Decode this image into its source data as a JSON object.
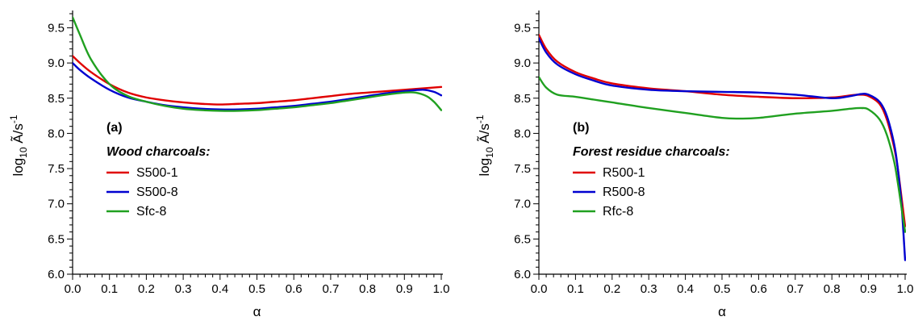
{
  "chart_data": [
    {
      "type": "line",
      "panel_label": "(a)",
      "legend_title": "Wood charcoals:",
      "xlabel": "α",
      "ylabel": "log10 Ã/s-1",
      "ylabel_parts": {
        "base": "log",
        "sub": "10",
        "mid": " Ã/s",
        "sup": "-1"
      },
      "xlim": [
        0.0,
        1.0
      ],
      "ylim": [
        6.0,
        9.7
      ],
      "xticks": [
        "0.0",
        "0.1",
        "0.2",
        "0.3",
        "0.4",
        "0.5",
        "0.6",
        "0.7",
        "0.8",
        "0.9",
        "1.0"
      ],
      "yticks": [
        "6.0",
        "6.5",
        "7.0",
        "7.5",
        "8.0",
        "8.5",
        "9.0",
        "9.5"
      ],
      "legend_position": "left",
      "series": [
        {
          "name": "S500-1",
          "color": "#e00000",
          "x": [
            0.0,
            0.02,
            0.05,
            0.1,
            0.15,
            0.2,
            0.25,
            0.3,
            0.35,
            0.4,
            0.45,
            0.5,
            0.55,
            0.6,
            0.65,
            0.7,
            0.75,
            0.8,
            0.85,
            0.9,
            0.95,
            1.0
          ],
          "y": [
            9.1,
            9.0,
            8.87,
            8.7,
            8.58,
            8.51,
            8.47,
            8.44,
            8.42,
            8.41,
            8.42,
            8.43,
            8.45,
            8.47,
            8.5,
            8.53,
            8.56,
            8.58,
            8.6,
            8.62,
            8.64,
            8.66
          ]
        },
        {
          "name": "S500-8",
          "color": "#0000d0",
          "x": [
            0.0,
            0.02,
            0.05,
            0.1,
            0.15,
            0.2,
            0.25,
            0.3,
            0.35,
            0.4,
            0.45,
            0.5,
            0.55,
            0.6,
            0.65,
            0.7,
            0.75,
            0.8,
            0.85,
            0.9,
            0.95,
            0.98,
            1.0
          ],
          "y": [
            9.0,
            8.9,
            8.78,
            8.62,
            8.51,
            8.45,
            8.4,
            8.37,
            8.35,
            8.34,
            8.34,
            8.35,
            8.37,
            8.39,
            8.42,
            8.45,
            8.49,
            8.53,
            8.57,
            8.6,
            8.62,
            8.59,
            8.54
          ]
        },
        {
          "name": "Sfc-8",
          "color": "#20a020",
          "x": [
            0.0,
            0.02,
            0.05,
            0.1,
            0.15,
            0.2,
            0.25,
            0.3,
            0.35,
            0.4,
            0.45,
            0.5,
            0.55,
            0.6,
            0.65,
            0.7,
            0.75,
            0.8,
            0.85,
            0.9,
            0.93,
            0.96,
            0.98,
            1.0
          ],
          "y": [
            9.65,
            9.4,
            9.05,
            8.7,
            8.53,
            8.45,
            8.39,
            8.35,
            8.33,
            8.32,
            8.32,
            8.33,
            8.35,
            8.37,
            8.4,
            8.43,
            8.47,
            8.51,
            8.55,
            8.58,
            8.58,
            8.53,
            8.45,
            8.33
          ]
        }
      ]
    },
    {
      "type": "line",
      "panel_label": "(b)",
      "legend_title": "Forest residue charcoals:",
      "xlabel": "α",
      "ylabel": "log10 Ã/s-1",
      "ylabel_parts": {
        "base": "log",
        "sub": "10",
        "mid": " Ã/s",
        "sup": "-1"
      },
      "xlim": [
        0.0,
        1.0
      ],
      "ylim": [
        6.0,
        9.7
      ],
      "xticks": [
        "0.0",
        "0.1",
        "0.2",
        "0.3",
        "0.4",
        "0.5",
        "0.6",
        "0.7",
        "0.8",
        "0.9",
        "1.0"
      ],
      "yticks": [
        "6.0",
        "6.5",
        "7.0",
        "7.5",
        "8.0",
        "8.5",
        "9.0",
        "9.5"
      ],
      "legend_position": "left",
      "series": [
        {
          "name": "R500-1",
          "color": "#e00000",
          "x": [
            0.0,
            0.02,
            0.05,
            0.1,
            0.15,
            0.2,
            0.3,
            0.4,
            0.5,
            0.6,
            0.7,
            0.8,
            0.85,
            0.88,
            0.9,
            0.93,
            0.95,
            0.97,
            0.98,
            0.99,
            1.0
          ],
          "y": [
            9.4,
            9.2,
            9.02,
            8.87,
            8.78,
            8.71,
            8.64,
            8.6,
            8.55,
            8.52,
            8.5,
            8.51,
            8.54,
            8.55,
            8.53,
            8.42,
            8.2,
            7.8,
            7.5,
            7.1,
            6.68
          ]
        },
        {
          "name": "R500-8",
          "color": "#0000d0",
          "x": [
            0.0,
            0.02,
            0.05,
            0.1,
            0.15,
            0.2,
            0.3,
            0.4,
            0.5,
            0.6,
            0.7,
            0.8,
            0.85,
            0.88,
            0.9,
            0.93,
            0.95,
            0.97,
            0.98,
            0.99,
            1.0
          ],
          "y": [
            9.35,
            9.15,
            8.98,
            8.84,
            8.75,
            8.68,
            8.62,
            8.6,
            8.59,
            8.58,
            8.55,
            8.5,
            8.53,
            8.56,
            8.55,
            8.45,
            8.25,
            7.85,
            7.5,
            7.0,
            6.2
          ]
        },
        {
          "name": "Rfc-8",
          "color": "#20a020",
          "x": [
            0.0,
            0.02,
            0.05,
            0.1,
            0.15,
            0.2,
            0.3,
            0.4,
            0.5,
            0.55,
            0.6,
            0.7,
            0.8,
            0.85,
            0.88,
            0.9,
            0.93,
            0.95,
            0.97,
            0.98,
            0.99,
            1.0
          ],
          "y": [
            8.8,
            8.65,
            8.55,
            8.52,
            8.48,
            8.44,
            8.36,
            8.29,
            8.22,
            8.21,
            8.22,
            8.28,
            8.32,
            8.35,
            8.36,
            8.34,
            8.2,
            7.98,
            7.6,
            7.3,
            6.95,
            6.6
          ]
        }
      ]
    }
  ]
}
